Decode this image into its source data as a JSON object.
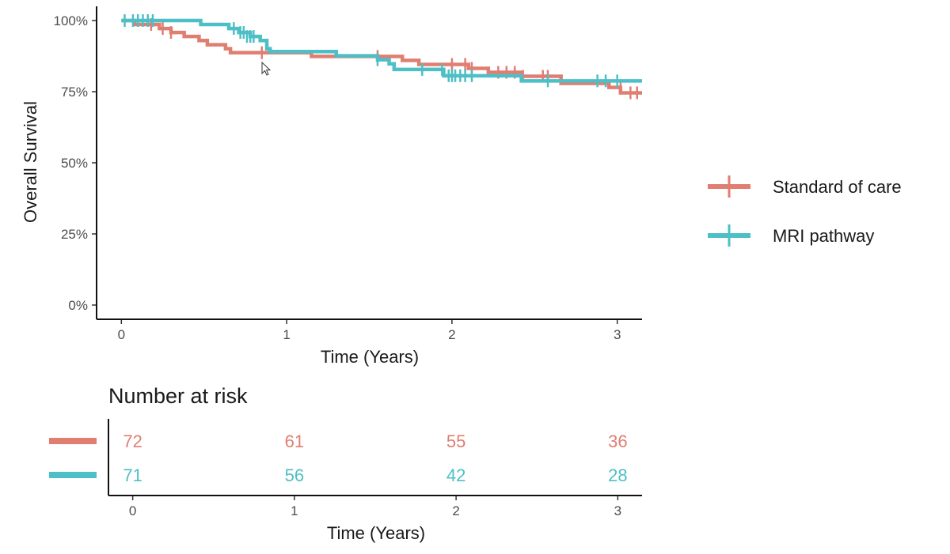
{
  "colors": {
    "standard": "#E07E72",
    "mri": "#4DBFC6",
    "axis": "#111111",
    "tick_text": "#4d4d4d"
  },
  "chart_data": {
    "type": "line",
    "step": true,
    "ylabel": "Overall Survival",
    "xlabel": "Time (Years)",
    "xlim": [
      -0.15,
      3.15
    ],
    "ylim": [
      -0.05,
      1.05
    ],
    "x_ticks": [
      0,
      1,
      2,
      3
    ],
    "x_tick_labels": [
      "0",
      "1",
      "2",
      "3"
    ],
    "y_ticks": [
      0,
      0.25,
      0.5,
      0.75,
      1.0
    ],
    "y_tick_labels": [
      "0%",
      "25%",
      "50%",
      "75%",
      "100%"
    ],
    "grid": false,
    "legend_position": "right",
    "series": [
      {
        "name": "Standard of care",
        "color_key": "standard",
        "steps": [
          [
            0,
            1.0
          ],
          [
            0.08,
            0.986
          ],
          [
            0.23,
            0.972
          ],
          [
            0.3,
            0.958
          ],
          [
            0.38,
            0.944
          ],
          [
            0.47,
            0.93
          ],
          [
            0.52,
            0.915
          ],
          [
            0.63,
            0.901
          ],
          [
            0.66,
            0.887
          ],
          [
            1.15,
            0.874
          ],
          [
            1.7,
            0.86
          ],
          [
            1.8,
            0.846
          ],
          [
            2.1,
            0.832
          ],
          [
            2.22,
            0.818
          ],
          [
            2.42,
            0.804
          ],
          [
            2.66,
            0.779
          ],
          [
            2.95,
            0.765
          ],
          [
            3.02,
            0.746
          ]
        ],
        "censored": [
          [
            0.18,
            0.986
          ],
          [
            0.25,
            0.972
          ],
          [
            0.3,
            0.958
          ],
          [
            0.85,
            0.887
          ],
          [
            1.55,
            0.874
          ],
          [
            2.0,
            0.846
          ],
          [
            2.0,
            0.832
          ],
          [
            2.08,
            0.846
          ],
          [
            2.12,
            0.832
          ],
          [
            2.28,
            0.818
          ],
          [
            2.33,
            0.818
          ],
          [
            2.38,
            0.818
          ],
          [
            2.43,
            0.804
          ],
          [
            2.55,
            0.804
          ],
          [
            2.58,
            0.804
          ],
          [
            3.02,
            0.765
          ],
          [
            3.08,
            0.746
          ],
          [
            3.12,
            0.746
          ]
        ],
        "end_x": 3.15
      },
      {
        "name": "MRI pathway",
        "color_key": "mri",
        "steps": [
          [
            0,
            1.0
          ],
          [
            0.48,
            0.986
          ],
          [
            0.65,
            0.972
          ],
          [
            0.71,
            0.958
          ],
          [
            0.78,
            0.944
          ],
          [
            0.84,
            0.93
          ],
          [
            0.88,
            0.901
          ],
          [
            0.9,
            0.891
          ],
          [
            1.3,
            0.876
          ],
          [
            1.55,
            0.862
          ],
          [
            1.62,
            0.848
          ],
          [
            1.65,
            0.828
          ],
          [
            1.95,
            0.806
          ],
          [
            2.42,
            0.788
          ]
        ],
        "censored": [
          [
            0.02,
            1.0
          ],
          [
            0.07,
            1.0
          ],
          [
            0.1,
            1.0
          ],
          [
            0.13,
            1.0
          ],
          [
            0.16,
            1.0
          ],
          [
            0.19,
            1.0
          ],
          [
            0.68,
            0.972
          ],
          [
            0.72,
            0.958
          ],
          [
            0.74,
            0.958
          ],
          [
            0.76,
            0.944
          ],
          [
            0.78,
            0.944
          ],
          [
            0.8,
            0.944
          ],
          [
            1.55,
            0.862
          ],
          [
            1.82,
            0.828
          ],
          [
            1.94,
            0.828
          ],
          [
            1.98,
            0.806
          ],
          [
            2.0,
            0.806
          ],
          [
            2.02,
            0.806
          ],
          [
            2.05,
            0.806
          ],
          [
            2.08,
            0.806
          ],
          [
            2.12,
            0.806
          ],
          [
            2.58,
            0.788
          ],
          [
            2.88,
            0.788
          ],
          [
            2.93,
            0.788
          ],
          [
            3.0,
            0.788
          ]
        ],
        "end_x": 3.15
      }
    ]
  },
  "legend": [
    {
      "label": "Standard of care",
      "color_key": "standard"
    },
    {
      "label": "MRI pathway",
      "color_key": "mri"
    }
  ],
  "risk_table": {
    "title": "Number at risk",
    "xlabel": "Time (Years)",
    "x_ticks": [
      0,
      1,
      2,
      3
    ],
    "x_tick_labels": [
      "0",
      "1",
      "2",
      "3"
    ],
    "rows": [
      {
        "name": "Standard of care",
        "color_key": "standard",
        "values": [
          "72",
          "61",
          "55",
          "36"
        ]
      },
      {
        "name": "MRI pathway",
        "color_key": "mri",
        "values": [
          "71",
          "56",
          "42",
          "28"
        ]
      }
    ]
  }
}
